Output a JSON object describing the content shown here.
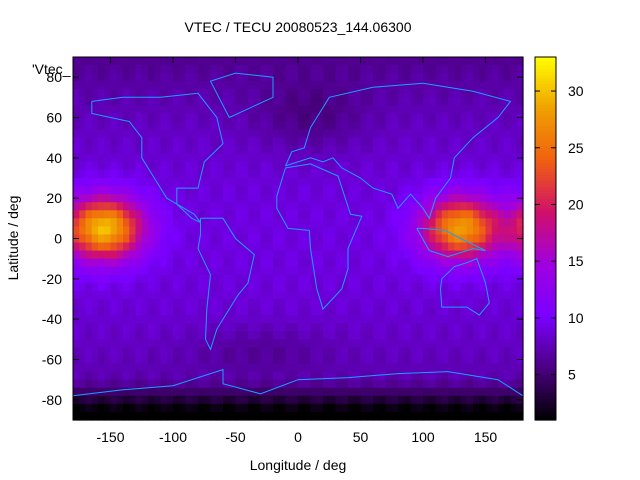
{
  "chart_data": {
    "type": "heatmap",
    "title": "VTEC / TECU 20080523_144.06300",
    "xlabel": "Longitude / deg",
    "ylabel": "Latitude / deg",
    "key_label": "'Vtec_",
    "xlim": [
      -180,
      180
    ],
    "ylim": [
      -90,
      90
    ],
    "x_ticks": [
      -150,
      -100,
      -50,
      0,
      50,
      100,
      150
    ],
    "y_ticks": [
      -80,
      -60,
      -40,
      -20,
      0,
      20,
      40,
      60,
      80
    ],
    "colorbar": {
      "range": [
        1,
        33
      ],
      "ticks": [
        5,
        10,
        15,
        20,
        25,
        30
      ],
      "palette": [
        "#000000",
        "#4b0082",
        "#7a00ff",
        "#a000e0",
        "#d0106a",
        "#f06010",
        "#f0a000",
        "#ffff00"
      ]
    },
    "hotspots": [
      {
        "lon": -155,
        "lat": 5,
        "value": 30
      },
      {
        "lon": 130,
        "lat": 5,
        "value": 28
      }
    ],
    "grid": false,
    "legend": "top-left"
  }
}
